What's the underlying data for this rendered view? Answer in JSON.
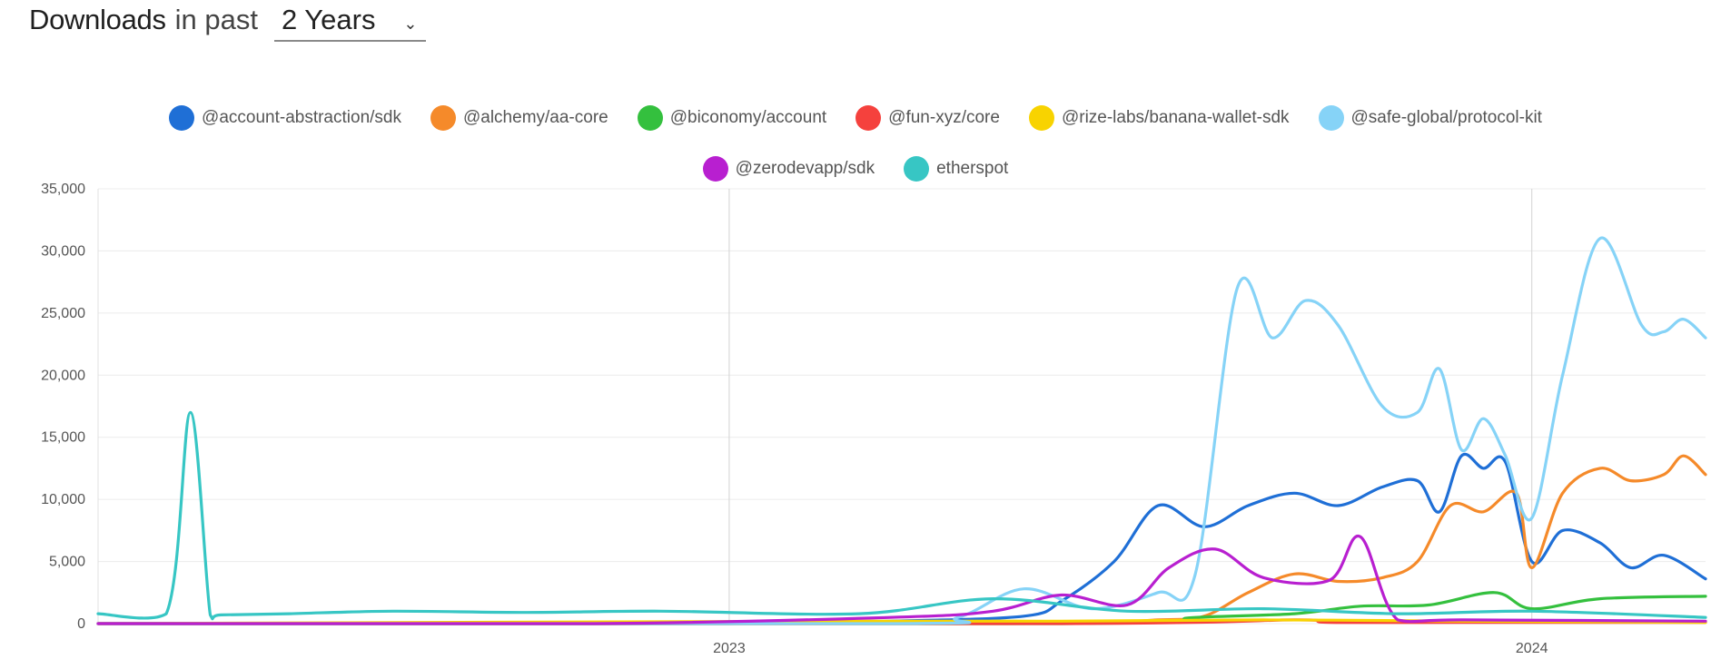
{
  "header": {
    "title": "Downloads",
    "subtitle": "in past",
    "range_value": "2 Years"
  },
  "chart_data": {
    "type": "line",
    "ylim": [
      0,
      35000
    ],
    "y_ticks": [
      0,
      5000,
      10000,
      15000,
      20000,
      25000,
      30000,
      35000
    ],
    "y_tick_labels": [
      "0",
      "5,000",
      "10,000",
      "15,000",
      "20,000",
      "25,000",
      "30,000",
      "35,000"
    ],
    "x_tick_labels": [
      "2023",
      "2024"
    ],
    "x_ticks": [
      "2023-01-01",
      "2024-01-01"
    ],
    "xlim": [
      "2022-03-20",
      "2024-03-20"
    ],
    "grid": true,
    "legend_placement": "top",
    "series": [
      {
        "name": "@account-abstraction/sdk",
        "color": "#1f6fd6",
        "x": [
          "2022-03-20",
          "2022-07-01",
          "2022-10-01",
          "2023-01-01",
          "2023-03-15",
          "2023-05-15",
          "2023-06-01",
          "2023-06-25",
          "2023-07-15",
          "2023-08-05",
          "2023-08-25",
          "2023-09-15",
          "2023-10-05",
          "2023-10-25",
          "2023-11-10",
          "2023-11-20",
          "2023-11-30",
          "2023-12-10",
          "2023-12-20",
          "2024-01-01",
          "2024-01-15",
          "2024-02-01",
          "2024-02-15",
          "2024-03-01",
          "2024-03-20"
        ],
        "values": [
          0,
          0,
          0,
          0,
          200,
          600,
          1800,
          5000,
          9500,
          7800,
          9500,
          10500,
          9500,
          11000,
          11500,
          9000,
          13500,
          12500,
          13000,
          5000,
          7500,
          6500,
          4500,
          5500,
          3600
        ]
      },
      {
        "name": "@alchemy/aa-core",
        "color": "#f58a2a",
        "x": [
          "2022-03-20",
          "2023-05-01",
          "2023-07-15",
          "2023-08-05",
          "2023-08-25",
          "2023-09-15",
          "2023-10-05",
          "2023-10-25",
          "2023-11-10",
          "2023-11-25",
          "2023-12-10",
          "2023-12-25",
          "2024-01-01",
          "2024-01-15",
          "2024-02-01",
          "2024-02-15",
          "2024-03-01",
          "2024-03-10",
          "2024-03-20"
        ],
        "values": [
          0,
          0,
          300,
          600,
          2500,
          4000,
          3400,
          3700,
          5000,
          9500,
          9000,
          10500,
          4500,
          10500,
          12500,
          11500,
          12000,
          13500,
          12000
        ]
      },
      {
        "name": "@biconomy/account",
        "color": "#34c03e",
        "x": [
          "2022-03-20",
          "2023-06-01",
          "2023-08-01",
          "2023-09-15",
          "2023-10-15",
          "2023-11-15",
          "2023-12-15",
          "2024-01-01",
          "2024-02-01",
          "2024-03-20"
        ],
        "values": [
          0,
          0,
          500,
          800,
          1400,
          1500,
          2500,
          1200,
          2000,
          2200
        ]
      },
      {
        "name": "@fun-xyz/core",
        "color": "#f5413d",
        "x": [
          "2022-03-20",
          "2023-06-01",
          "2023-09-15",
          "2023-10-01",
          "2023-12-01",
          "2024-03-20"
        ],
        "values": [
          0,
          0,
          300,
          100,
          100,
          100
        ]
      },
      {
        "name": "@rize-labs/banana-wallet-sdk",
        "color": "#f8d300",
        "x": [
          "2022-03-20",
          "2023-03-01",
          "2023-06-01",
          "2023-09-01",
          "2023-12-01",
          "2024-03-20"
        ],
        "values": [
          0,
          200,
          200,
          300,
          200,
          100
        ]
      },
      {
        "name": "@safe-global/protocol-kit",
        "color": "#86d3f7",
        "x": [
          "2022-03-20",
          "2023-03-15",
          "2023-04-15",
          "2023-05-15",
          "2023-06-15",
          "2023-07-15",
          "2023-08-01",
          "2023-08-20",
          "2023-09-05",
          "2023-09-20",
          "2023-10-05",
          "2023-10-25",
          "2023-11-10",
          "2023-11-20",
          "2023-11-30",
          "2023-12-10",
          "2023-12-20",
          "2024-01-01",
          "2024-01-15",
          "2024-02-01",
          "2024-02-20",
          "2024-03-01",
          "2024-03-10",
          "2024-03-20"
        ],
        "values": [
          0,
          0,
          500,
          2800,
          1200,
          2500,
          4000,
          27000,
          23000,
          26000,
          24000,
          17500,
          17000,
          20500,
          14000,
          16500,
          13500,
          8500,
          20000,
          31000,
          24000,
          23500,
          24500,
          23000
        ]
      },
      {
        "name": "@zerodevapp/sdk",
        "color": "#b81fd0",
        "x": [
          "2022-03-20",
          "2022-11-01",
          "2023-03-15",
          "2023-05-01",
          "2023-06-01",
          "2023-07-01",
          "2023-07-20",
          "2023-08-10",
          "2023-09-01",
          "2023-10-01",
          "2023-10-15",
          "2023-11-01",
          "2023-12-01",
          "2024-03-20"
        ],
        "values": [
          0,
          0,
          500,
          1000,
          2300,
          1500,
          4500,
          6000,
          3700,
          3500,
          7000,
          300,
          300,
          200
        ]
      },
      {
        "name": "etherspot",
        "color": "#37c6c4",
        "x": [
          "2022-03-20",
          "2022-04-20",
          "2022-05-01",
          "2022-05-10",
          "2022-05-15",
          "2022-06-15",
          "2022-08-01",
          "2022-10-01",
          "2022-12-01",
          "2023-03-01",
          "2023-05-01",
          "2023-07-01",
          "2023-09-01",
          "2023-11-01",
          "2024-01-01",
          "2024-03-20"
        ],
        "values": [
          800,
          800,
          17000,
          700,
          700,
          800,
          1000,
          900,
          1000,
          800,
          2000,
          1000,
          1200,
          800,
          1000,
          500
        ]
      }
    ]
  }
}
